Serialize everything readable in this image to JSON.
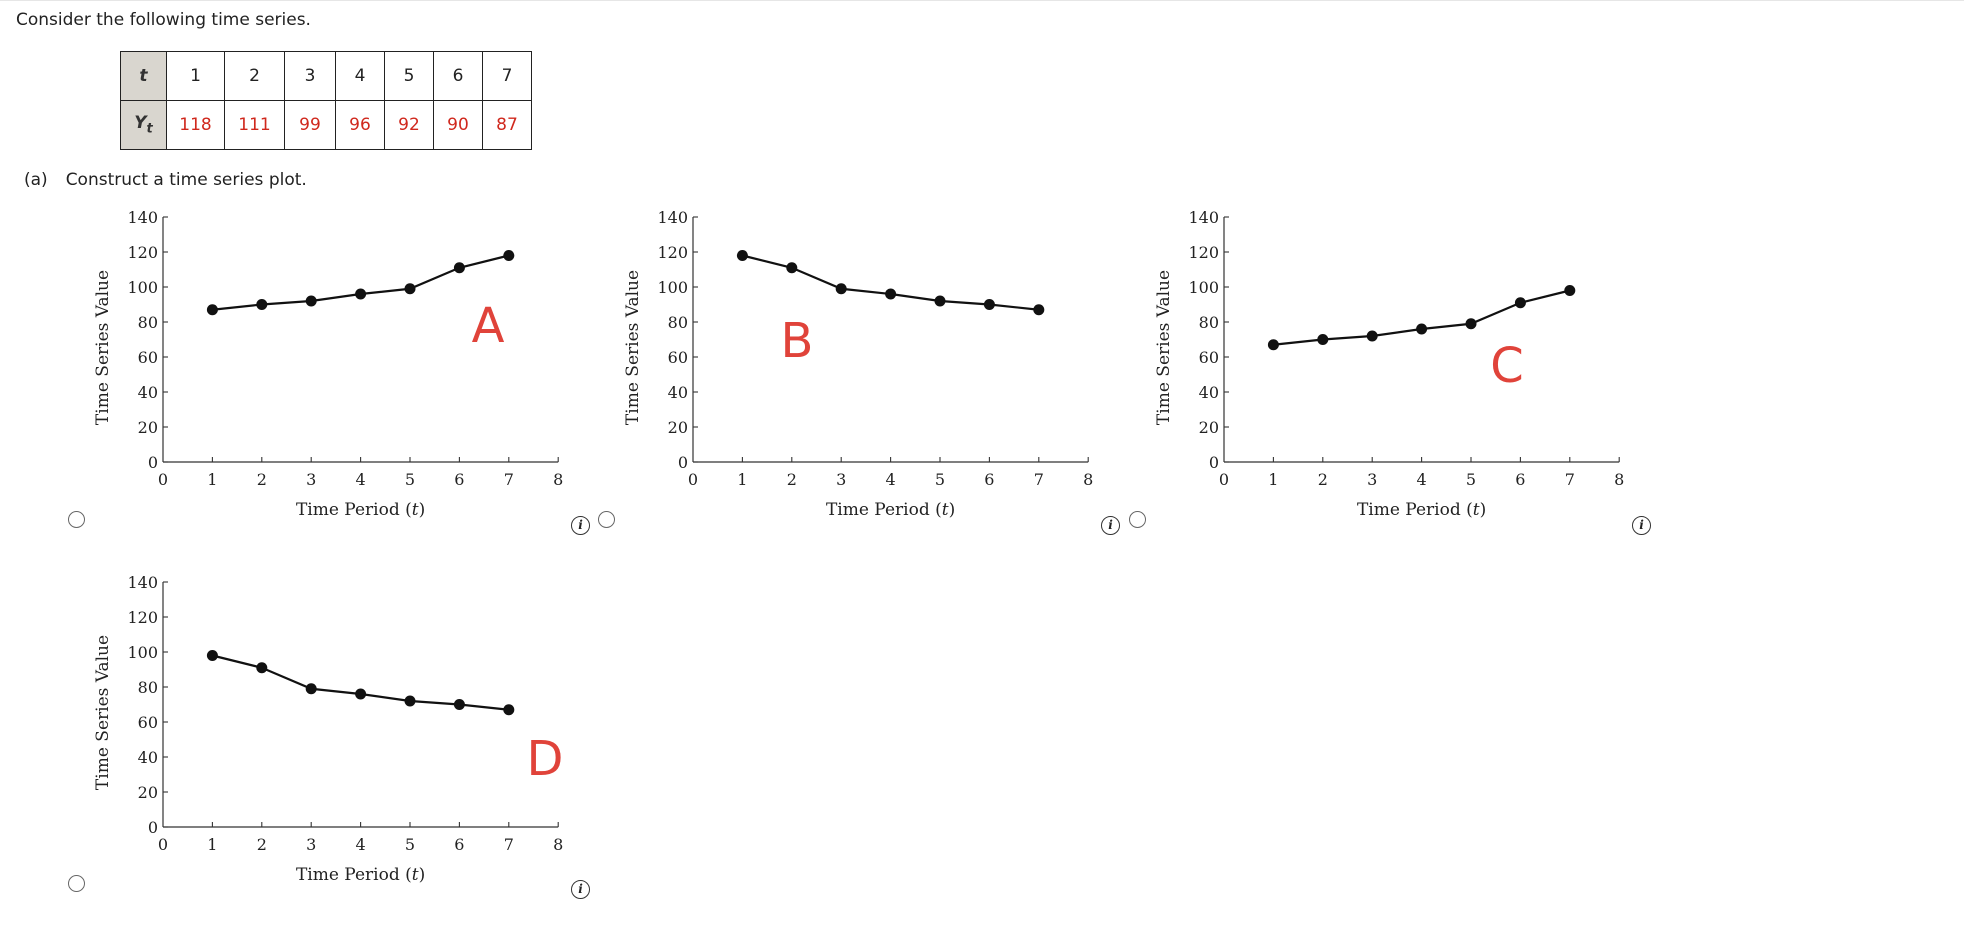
{
  "prompt": "Consider the following time series.",
  "table": {
    "t_label": "t",
    "y_label": "Y",
    "y_sub": "t",
    "t_values": [
      "1",
      "2",
      "3",
      "4",
      "5",
      "6",
      "7"
    ],
    "y_values": [
      "118",
      "111",
      "99",
      "96",
      "92",
      "90",
      "87"
    ]
  },
  "part_a": {
    "label": "(a)",
    "text": "Construct a time series plot."
  },
  "colors": {
    "letter": "#e0433a",
    "table_value": "#d0281d",
    "header_bg": "#d9d6cf"
  },
  "chart_data": [
    {
      "type": "line",
      "option_letter": "A",
      "x": [
        1,
        2,
        3,
        4,
        5,
        6,
        7
      ],
      "y": [
        87,
        90,
        92,
        96,
        99,
        111,
        118
      ],
      "xlabel": "Time Period",
      "xlabel_var": "t",
      "ylabel": "Time Series Value",
      "xlim": [
        0,
        8
      ],
      "ylim": [
        0,
        140
      ],
      "xticks": [
        "0",
        "1",
        "2",
        "3",
        "4",
        "5",
        "6",
        "7",
        "8"
      ],
      "yticks": [
        "0",
        "20",
        "40",
        "60",
        "80",
        "100",
        "120",
        "140"
      ],
      "grid": false
    },
    {
      "type": "line",
      "option_letter": "B",
      "x": [
        1,
        2,
        3,
        4,
        5,
        6,
        7
      ],
      "y": [
        118,
        111,
        99,
        96,
        92,
        90,
        87
      ],
      "xlabel": "Time Period",
      "xlabel_var": "t",
      "ylabel": "Time Series Value",
      "xlim": [
        0,
        8
      ],
      "ylim": [
        0,
        140
      ],
      "xticks": [
        "0",
        "1",
        "2",
        "3",
        "4",
        "5",
        "6",
        "7",
        "8"
      ],
      "yticks": [
        "0",
        "20",
        "40",
        "60",
        "80",
        "100",
        "120",
        "140"
      ],
      "grid": false
    },
    {
      "type": "line",
      "option_letter": "C",
      "x": [
        1,
        2,
        3,
        4,
        5,
        6,
        7
      ],
      "y": [
        67,
        70,
        72,
        76,
        79,
        91,
        98
      ],
      "xlabel": "Time Period",
      "xlabel_var": "t",
      "ylabel": "Time Series Value",
      "xlim": [
        0,
        8
      ],
      "ylim": [
        0,
        140
      ],
      "xticks": [
        "0",
        "1",
        "2",
        "3",
        "4",
        "5",
        "6",
        "7",
        "8"
      ],
      "yticks": [
        "0",
        "20",
        "40",
        "60",
        "80",
        "100",
        "120",
        "140"
      ],
      "grid": false
    },
    {
      "type": "line",
      "option_letter": "D",
      "x": [
        1,
        2,
        3,
        4,
        5,
        6,
        7
      ],
      "y": [
        98,
        91,
        79,
        76,
        72,
        70,
        67
      ],
      "xlabel": "Time Period",
      "xlabel_var": "t",
      "ylabel": "Time Series Value",
      "xlim": [
        0,
        8
      ],
      "ylim": [
        0,
        140
      ],
      "xticks": [
        "0",
        "1",
        "2",
        "3",
        "4",
        "5",
        "6",
        "7",
        "8"
      ],
      "yticks": [
        "0",
        "20",
        "40",
        "60",
        "80",
        "100",
        "120",
        "140"
      ],
      "grid": false
    }
  ]
}
